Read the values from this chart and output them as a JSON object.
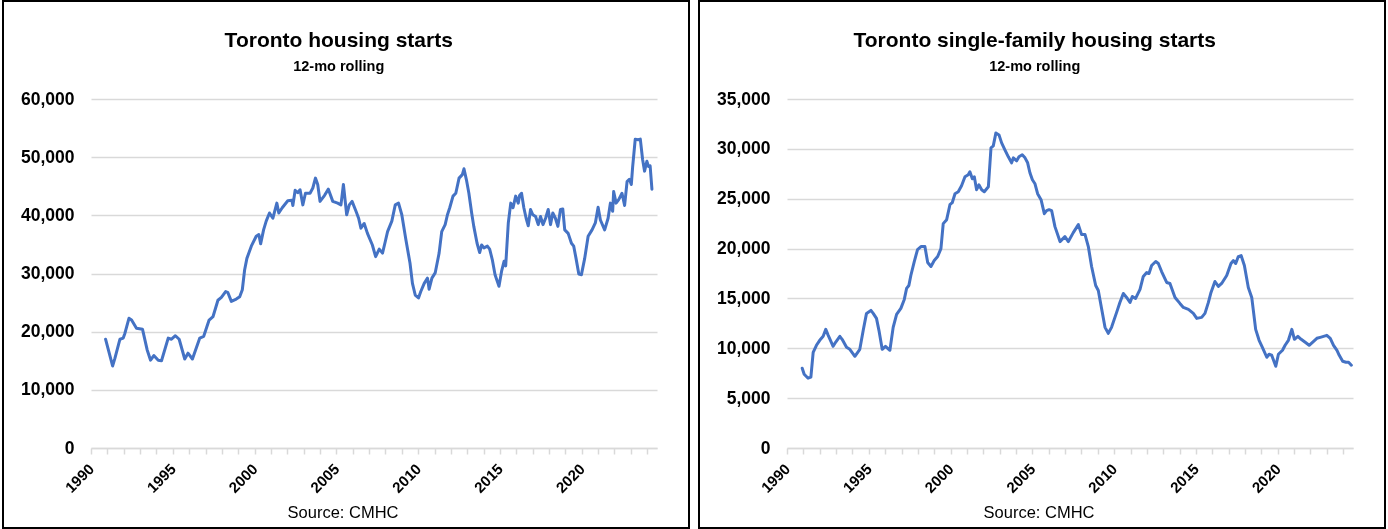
{
  "chart_data": [
    {
      "type": "line",
      "title": "Toronto housing starts",
      "subtitle": "12-mo rolling",
      "annotations": [
        "Source: CMHC"
      ],
      "color": "#4472c4",
      "x": [
        1990.89,
        1991.32,
        1991.46,
        1991.77,
        1991.97,
        1992.07,
        1992.32,
        1992.48,
        1992.78,
        1993.15,
        1993.43,
        1993.64,
        1993.84,
        1994.11,
        1994.31,
        1994.72,
        1994.92,
        1995.16,
        1995.39,
        1995.73,
        1995.93,
        1996.2,
        1996.65,
        1996.89,
        1997.22,
        1997.46,
        1997.76,
        1997.97,
        1998.23,
        1998.37,
        1998.58,
        1998.88,
        1999.09,
        1999.25,
        1999.39,
        1999.53,
        1999.8,
        2000.1,
        2000.26,
        2000.37,
        2000.55,
        2000.71,
        2000.91,
        2001.12,
        2001.36,
        2001.48,
        2001.69,
        2002.03,
        2002.28,
        2002.34,
        2002.48,
        2002.64,
        2002.78,
        2002.95,
        2003.11,
        2003.39,
        2003.56,
        2003.72,
        2003.86,
        2004.0,
        2004.27,
        2004.51,
        2004.78,
        2005.08,
        2005.28,
        2005.43,
        2005.63,
        2005.79,
        2005.96,
        2006.2,
        2006.36,
        2006.5,
        2006.7,
        2006.9,
        2007.2,
        2007.4,
        2007.62,
        2007.82,
        2007.99,
        2008.13,
        2008.39,
        2008.6,
        2008.8,
        2009.0,
        2009.25,
        2009.5,
        2009.65,
        2009.82,
        2010.02,
        2010.16,
        2010.37,
        2010.57,
        2010.67,
        2010.84,
        2011.04,
        2011.28,
        2011.44,
        2011.65,
        2011.79,
        2011.93,
        2012.13,
        2012.3,
        2012.5,
        2012.7,
        2012.8,
        2012.95,
        2013.1,
        2013.27,
        2013.4,
        2013.6,
        2013.76,
        2013.88,
        2014.02,
        2014.23,
        2014.37,
        2014.53,
        2014.7,
        2014.94,
        2015.1,
        2015.25,
        2015.35,
        2015.51,
        2015.66,
        2015.8,
        2015.96,
        2016.12,
        2016.2,
        2016.32,
        2016.46,
        2016.6,
        2016.73,
        2016.87,
        2017.01,
        2017.18,
        2017.34,
        2017.48,
        2017.63,
        2017.79,
        2017.95,
        2018.09,
        2018.23,
        2018.39,
        2018.54,
        2018.7,
        2018.84,
        2018.96,
        2019.17,
        2019.37,
        2019.51,
        2019.65,
        2019.82,
        2019.98,
        2020.18,
        2020.39,
        2020.63,
        2020.83,
        2021.0,
        2021.14,
        2021.4,
        2021.61,
        2021.75,
        2021.89,
        2021.95,
        2022.1,
        2022.26,
        2022.46,
        2022.62,
        2022.77,
        2022.91,
        2023.03,
        2023.11,
        2023.27,
        2023.44,
        2023.58,
        2023.72,
        2023.84,
        2023.98,
        2024.08,
        2024.18,
        2024.29
      ],
      "values": [
        18700,
        14100,
        15400,
        18700,
        18900,
        19700,
        22300,
        22000,
        20600,
        20400,
        16900,
        15100,
        15900,
        15100,
        15000,
        18900,
        18700,
        19300,
        18700,
        15300,
        16300,
        15300,
        18900,
        19200,
        22000,
        22600,
        25400,
        25900,
        26900,
        26700,
        25200,
        25600,
        26000,
        27200,
        30600,
        32600,
        34700,
        36400,
        36700,
        35100,
        37500,
        39000,
        40400,
        39500,
        42100,
        40400,
        41300,
        42500,
        42600,
        41700,
        44300,
        43900,
        44400,
        41800,
        43800,
        43800,
        44700,
        46400,
        45300,
        42400,
        43400,
        44500,
        42400,
        42100,
        41800,
        45300,
        40100,
        41800,
        42400,
        40700,
        39500,
        37800,
        38600,
        36900,
        34900,
        32900,
        34200,
        33500,
        35500,
        37200,
        39000,
        41800,
        42100,
        40100,
        35800,
        31800,
        28300,
        26300,
        25800,
        26900,
        28300,
        29200,
        27300,
        29200,
        30100,
        33500,
        37200,
        38400,
        40100,
        41300,
        43300,
        43800,
        46400,
        47000,
        48000,
        46100,
        43800,
        40400,
        38100,
        35200,
        33600,
        34900,
        34400,
        34700,
        34200,
        32400,
        29800,
        27800,
        30400,
        32100,
        31300,
        38700,
        42100,
        41300,
        43300,
        42100,
        43400,
        43800,
        41300,
        39500,
        38200,
        41000,
        40100,
        39800,
        38400,
        39800,
        38400,
        39500,
        41000,
        38400,
        40400,
        39500,
        38100,
        41000,
        41100,
        37500,
        36900,
        35200,
        34700,
        32600,
        29900,
        29800,
        32600,
        36400,
        37500,
        38700,
        41400,
        39200,
        37500,
        39500,
        42100,
        40700,
        44100,
        42100,
        42700,
        43800,
        41700,
        45800,
        46200,
        45300,
        48300,
        53100,
        53000,
        53100,
        49600,
        47600,
        49300,
        48400,
        48500,
        44500
      ],
      "xlim": [
        1990,
        2024.6
      ],
      "xticks": [
        1990,
        {
          "value": 1991,
          "label": null
        },
        {
          "value": 1992,
          "label": null
        },
        {
          "value": 1993,
          "label": null
        },
        {
          "value": 1994,
          "label": null
        },
        1995,
        {
          "value": 1996,
          "label": null
        },
        {
          "value": 1997,
          "label": null
        },
        {
          "value": 1998,
          "label": null
        },
        {
          "value": 1999,
          "label": null
        },
        2000,
        {
          "value": 2001,
          "label": null
        },
        {
          "value": 2002,
          "label": null
        },
        {
          "value": 2003,
          "label": null
        },
        {
          "value": 2004,
          "label": null
        },
        2005,
        {
          "value": 2006,
          "label": null
        },
        {
          "value": 2007,
          "label": null
        },
        {
          "value": 2008,
          "label": null
        },
        {
          "value": 2009,
          "label": null
        },
        2010,
        {
          "value": 2011,
          "label": null
        },
        {
          "value": 2012,
          "label": null
        },
        {
          "value": 2013,
          "label": null
        },
        {
          "value": 2014,
          "label": null
        },
        2015,
        {
          "value": 2016,
          "label": null
        },
        {
          "value": 2017,
          "label": null
        },
        {
          "value": 2018,
          "label": null
        },
        {
          "value": 2019,
          "label": null
        },
        2020,
        {
          "value": 2021,
          "label": null
        },
        {
          "value": 2022,
          "label": null
        },
        {
          "value": 2023,
          "label": null
        },
        {
          "value": 2024,
          "label": null
        }
      ],
      "ylim": [
        0,
        60000
      ],
      "yticks": [
        0,
        {
          "value": 10000,
          "label": "10,000"
        },
        {
          "value": 20000,
          "label": "20,000"
        },
        {
          "value": 30000,
          "label": "30,000"
        },
        {
          "value": 40000,
          "label": "40,000"
        },
        {
          "value": 50000,
          "label": "50,000"
        },
        {
          "value": 60000,
          "label": "60,000"
        }
      ],
      "grid": "y"
    },
    {
      "type": "line",
      "title": "Toronto single-family housing starts",
      "subtitle": "12-mo rolling",
      "annotations": [
        "Source: CMHC"
      ],
      "color": "#4472c4",
      "x": [
        1990.93,
        1991.05,
        1991.29,
        1991.46,
        1991.6,
        1991.8,
        1992.0,
        1992.21,
        1992.37,
        1992.52,
        1992.82,
        1992.97,
        1993.23,
        1993.37,
        1993.64,
        1993.84,
        1994.15,
        1994.45,
        1994.66,
        1994.86,
        1995.13,
        1995.27,
        1995.47,
        1995.62,
        1995.82,
        1996.02,
        1996.29,
        1996.49,
        1996.7,
        1996.96,
        1997.17,
        1997.31,
        1997.45,
        1997.57,
        1997.78,
        1997.98,
        1998.19,
        1998.43,
        1998.6,
        1998.8,
        1999.0,
        1999.21,
        1999.41,
        1999.55,
        1999.76,
        1999.96,
        2000.1,
        2000.27,
        2000.47,
        2000.67,
        2000.88,
        2001.08,
        2001.18,
        2001.33,
        2001.45,
        2001.59,
        2001.73,
        2001.9,
        2002.06,
        2002.31,
        2002.47,
        2002.61,
        2002.77,
        2002.96,
        2003.12,
        2003.32,
        2003.53,
        2003.73,
        2003.84,
        2004.04,
        2004.18,
        2004.38,
        2004.55,
        2004.71,
        2004.85,
        2005.0,
        2005.16,
        2005.32,
        2005.53,
        2005.73,
        2005.87,
        2006.02,
        2006.18,
        2006.38,
        2006.69,
        2006.99,
        2007.2,
        2007.5,
        2007.81,
        2008.01,
        2008.22,
        2008.42,
        2008.62,
        2008.87,
        2009.03,
        2009.23,
        2009.44,
        2009.64,
        2009.84,
        2010.15,
        2010.35,
        2010.56,
        2010.76,
        2010.97,
        2011.11,
        2011.31,
        2011.58,
        2011.78,
        2011.99,
        2012.13,
        2012.29,
        2012.54,
        2012.7,
        2012.9,
        2013.21,
        2013.41,
        2013.72,
        2014.02,
        2014.23,
        2014.54,
        2014.84,
        2015.05,
        2015.35,
        2015.55,
        2015.76,
        2015.92,
        2016.16,
        2016.37,
        2016.57,
        2016.88,
        2017.14,
        2017.29,
        2017.43,
        2017.59,
        2017.76,
        2017.96,
        2018.2,
        2018.41,
        2018.65,
        2018.86,
        2019.06,
        2019.33,
        2019.47,
        2019.63,
        2019.88,
        2020.04,
        2020.29,
        2020.45,
        2020.65,
        2020.86,
        2021.02,
        2021.23,
        2021.43,
        2021.68,
        2021.92,
        2022.19,
        2022.39,
        2022.6,
        2022.8,
        2023.0,
        2023.21,
        2023.41,
        2023.62,
        2023.76,
        2023.97,
        2024.17,
        2024.33,
        2024.5
      ],
      "values": [
        8000,
        7400,
        7000,
        7100,
        9600,
        10300,
        10800,
        11200,
        11900,
        11300,
        10200,
        10600,
        11200,
        10900,
        10100,
        9900,
        9200,
        9900,
        11800,
        13500,
        13800,
        13500,
        13000,
        11800,
        9900,
        10200,
        9800,
        12100,
        13400,
        14000,
        14900,
        16000,
        16300,
        17300,
        18700,
        19900,
        20200,
        20200,
        18600,
        18200,
        18800,
        19200,
        20000,
        22500,
        22900,
        24400,
        24600,
        25500,
        25700,
        26300,
        27200,
        27400,
        27700,
        27000,
        27200,
        25900,
        26400,
        25900,
        25700,
        26200,
        30100,
        30300,
        31600,
        31400,
        30600,
        29900,
        29200,
        28600,
        29100,
        28800,
        29200,
        29400,
        29100,
        28600,
        27600,
        26900,
        26500,
        25500,
        24900,
        23500,
        23800,
        23900,
        23800,
        22200,
        20700,
        21200,
        20700,
        21600,
        22400,
        21400,
        21400,
        20200,
        18200,
        16300,
        15800,
        14000,
        12100,
        11500,
        12100,
        13600,
        14600,
        15500,
        15100,
        14600,
        15200,
        15000,
        15900,
        17200,
        17600,
        17500,
        18300,
        18700,
        18500,
        17700,
        16600,
        16500,
        15100,
        14500,
        14100,
        13900,
        13500,
        13000,
        13100,
        13500,
        14600,
        15600,
        16700,
        16200,
        16500,
        17300,
        18500,
        18800,
        18500,
        19200,
        19300,
        18300,
        16100,
        15100,
        11900,
        10800,
        10100,
        9100,
        9400,
        9300,
        8200,
        9400,
        9800,
        10300,
        10800,
        11900,
        10900,
        11200,
        10900,
        10600,
        10300,
        10700,
        11000,
        11100,
        11200,
        11300,
        11000,
        10300,
        9800,
        9300,
        8700,
        8600,
        8600,
        8300
      ],
      "xlim": [
        1990,
        2024.6
      ],
      "xticks": [
        1990,
        {
          "value": 1991,
          "label": null
        },
        {
          "value": 1992,
          "label": null
        },
        {
          "value": 1993,
          "label": null
        },
        {
          "value": 1994,
          "label": null
        },
        1995,
        {
          "value": 1996,
          "label": null
        },
        {
          "value": 1997,
          "label": null
        },
        {
          "value": 1998,
          "label": null
        },
        {
          "value": 1999,
          "label": null
        },
        2000,
        {
          "value": 2001,
          "label": null
        },
        {
          "value": 2002,
          "label": null
        },
        {
          "value": 2003,
          "label": null
        },
        {
          "value": 2004,
          "label": null
        },
        2005,
        {
          "value": 2006,
          "label": null
        },
        {
          "value": 2007,
          "label": null
        },
        {
          "value": 2008,
          "label": null
        },
        {
          "value": 2009,
          "label": null
        },
        2010,
        {
          "value": 2011,
          "label": null
        },
        {
          "value": 2012,
          "label": null
        },
        {
          "value": 2013,
          "label": null
        },
        {
          "value": 2014,
          "label": null
        },
        2015,
        {
          "value": 2016,
          "label": null
        },
        {
          "value": 2017,
          "label": null
        },
        {
          "value": 2018,
          "label": null
        },
        {
          "value": 2019,
          "label": null
        },
        2020,
        {
          "value": 2021,
          "label": null
        },
        {
          "value": 2022,
          "label": null
        },
        {
          "value": 2023,
          "label": null
        },
        {
          "value": 2024,
          "label": null
        }
      ],
      "ylim": [
        0,
        35000
      ],
      "yticks": [
        0,
        {
          "value": 5000,
          "label": "5,000"
        },
        {
          "value": 10000,
          "label": "10,000"
        },
        {
          "value": 15000,
          "label": "15,000"
        },
        {
          "value": 20000,
          "label": "20,000"
        },
        {
          "value": 25000,
          "label": "25,000"
        },
        {
          "value": 30000,
          "label": "30,000"
        },
        {
          "value": 35000,
          "label": "35,000"
        }
      ],
      "grid": "y"
    }
  ]
}
